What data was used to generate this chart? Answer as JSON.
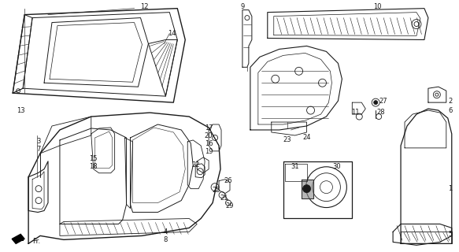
{
  "background_color": "#ffffff",
  "line_color": "#1a1a1a",
  "fig_width": 5.83,
  "fig_height": 3.2,
  "dpi": 100,
  "Fr_label": "Fr."
}
